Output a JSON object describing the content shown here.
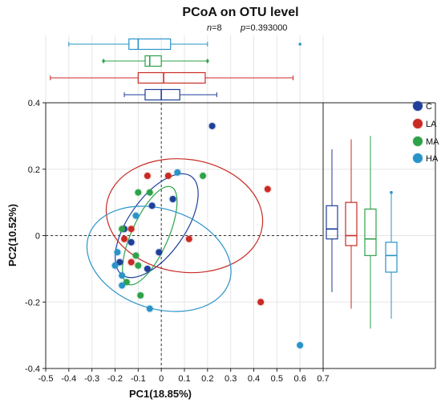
{
  "chart_data": {
    "type": "scatter",
    "title": "PCoA on OTU level",
    "stat_n_label": "n",
    "stat_n_value": "=8",
    "stat_p_label": "p",
    "stat_p_value": "=0.393000",
    "xlabel": "PC1(18.85%)",
    "ylabel": "PC2(10.52%)",
    "xlim": [
      -0.5,
      0.7
    ],
    "ylim": [
      -0.4,
      0.4
    ],
    "xticks": [
      "-0.5",
      "-0.4",
      "-0.3",
      "-0.2",
      "-0.1",
      "0",
      "0.1",
      "0.2",
      "0.3",
      "0.4",
      "0.5",
      "0.6",
      "0.7"
    ],
    "yticks": [
      "0.4",
      "0.2",
      "0",
      "-0.2",
      "-0.4"
    ],
    "reference_lines": {
      "x": 0,
      "y": 0
    },
    "grid": true,
    "legend_position": "right",
    "series": [
      {
        "name": "C",
        "color": "#1f3f99",
        "points": [
          [
            0.22,
            0.33
          ],
          [
            0.05,
            0.11
          ],
          [
            -0.04,
            0.09
          ],
          [
            -0.16,
            0.02
          ],
          [
            -0.01,
            -0.05
          ],
          [
            -0.13,
            -0.02
          ],
          [
            -0.18,
            -0.08
          ],
          [
            -0.06,
            -0.1
          ]
        ],
        "ellipse": {
          "cx": -0.02,
          "cy": 0.03,
          "rx": 0.26,
          "ry": 0.085,
          "angle": 55
        },
        "box": {
          "min": -0.16,
          "q1": -0.07,
          "median": 0.0,
          "q3": 0.08,
          "max": 0.24,
          "outliers": []
        },
        "box_y": {
          "min": -0.17,
          "q1": -0.01,
          "median": 0.02,
          "q3": 0.09,
          "max": 0.26,
          "outliers": []
        }
      },
      {
        "name": "LA",
        "color": "#c82b24",
        "points": [
          [
            0.46,
            0.14
          ],
          [
            -0.06,
            0.18
          ],
          [
            0.03,
            0.18
          ],
          [
            0.12,
            -0.01
          ],
          [
            0.43,
            -0.2
          ],
          [
            -0.13,
            0.02
          ],
          [
            -0.16,
            -0.01
          ],
          [
            -0.13,
            -0.08
          ]
        ],
        "ellipse": {
          "cx": 0.1,
          "cy": 0.06,
          "rx": 0.34,
          "ry": 0.17,
          "angle": -8
        },
        "box": {
          "min": -0.48,
          "q1": -0.1,
          "median": 0.01,
          "q3": 0.19,
          "max": 0.57,
          "outliers": []
        },
        "box_y": {
          "min": -0.22,
          "q1": -0.03,
          "median": 0.0,
          "q3": 0.1,
          "max": 0.29,
          "outliers": []
        }
      },
      {
        "name": "MA",
        "color": "#2ea24a",
        "points": [
          [
            -0.1,
            0.13
          ],
          [
            -0.05,
            0.13
          ],
          [
            0.18,
            0.18
          ],
          [
            -0.17,
            0.02
          ],
          [
            -0.11,
            -0.06
          ],
          [
            -0.1,
            -0.09
          ],
          [
            -0.15,
            -0.14
          ],
          [
            -0.09,
            -0.18
          ]
        ],
        "ellipse": {
          "cx": -0.05,
          "cy": 0.0,
          "rx": 0.23,
          "ry": 0.055,
          "angle": 66
        },
        "box": {
          "min": -0.25,
          "q1": -0.07,
          "median": -0.05,
          "q3": 0.0,
          "max": 0.2,
          "outliers": [
            -0.25,
            0.2
          ]
        },
        "box_y": {
          "min": -0.28,
          "q1": -0.06,
          "median": -0.01,
          "q3": 0.08,
          "max": 0.3,
          "outliers": []
        }
      },
      {
        "name": "HA",
        "color": "#2a93c8",
        "points": [
          [
            0.6,
            -0.33
          ],
          [
            0.07,
            0.19
          ],
          [
            -0.11,
            0.06
          ],
          [
            -0.19,
            -0.05
          ],
          [
            -0.2,
            -0.09
          ],
          [
            -0.17,
            -0.15
          ],
          [
            -0.05,
            -0.22
          ],
          [
            -0.17,
            -0.12
          ]
        ],
        "ellipse": {
          "cx": -0.01,
          "cy": -0.07,
          "rx": 0.32,
          "ry": 0.15,
          "angle": -18
        },
        "box": {
          "min": -0.4,
          "q1": -0.14,
          "median": -0.1,
          "q3": 0.04,
          "max": 0.2,
          "outliers": [
            0.6
          ]
        },
        "box_y": {
          "min": -0.25,
          "q1": -0.11,
          "median": -0.06,
          "q3": -0.02,
          "max": 0.13,
          "outliers": [
            0.13
          ]
        }
      }
    ]
  }
}
